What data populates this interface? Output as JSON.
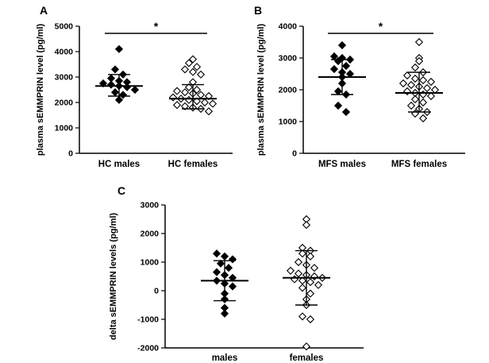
{
  "figure": {
    "background": "#ffffff",
    "marker_colors": {
      "filled": "#000000",
      "open_fill": "#ffffff",
      "stroke": "#000000"
    },
    "significance_marker": "*"
  },
  "chart_data": [
    {
      "panel": "A",
      "type": "scatter",
      "title": "",
      "ylabel": "plasma sEMMPRIN level (pg/ml)",
      "xlabel": "",
      "ylim": [
        0,
        5000
      ],
      "yticks": [
        0,
        1000,
        2000,
        3000,
        4000,
        5000
      ],
      "significance": "*",
      "legend": "none",
      "grid": false,
      "groups": [
        {
          "label": "HC males",
          "marker": "filled-diamond",
          "mean": 2650,
          "err_low": 2250,
          "err_high": 3100,
          "values": [
            4100,
            3300,
            3100,
            2950,
            2850,
            2800,
            2750,
            2700,
            2650,
            2600,
            2500,
            2400,
            2300,
            2100
          ]
        },
        {
          "label": "HC females",
          "marker": "open-diamond",
          "mean": 2150,
          "err_low": 1750,
          "err_high": 2700,
          "values": [
            3700,
            3550,
            3400,
            3300,
            3200,
            3100,
            2800,
            2600,
            2500,
            2450,
            2400,
            2350,
            2300,
            2250,
            2200,
            2150,
            2100,
            2050,
            2000,
            1950,
            1900,
            1850,
            1800,
            1750,
            1650
          ]
        }
      ]
    },
    {
      "panel": "B",
      "type": "scatter",
      "title": "",
      "ylabel": "plasma sEMMPRIN level (pg/ml)",
      "xlabel": "",
      "ylim": [
        0,
        4000
      ],
      "yticks": [
        0,
        1000,
        2000,
        3000,
        4000
      ],
      "significance": "*",
      "legend": "none",
      "grid": false,
      "groups": [
        {
          "label": "MFS males",
          "marker": "filled-diamond",
          "mean": 2400,
          "err_low": 1850,
          "err_high": 2950,
          "values": [
            3400,
            3050,
            3000,
            2950,
            2900,
            2750,
            2650,
            2550,
            2500,
            2400,
            2200,
            1950,
            1850,
            1500,
            1300
          ]
        },
        {
          "label": "MFS females",
          "marker": "open-diamond",
          "mean": 1900,
          "err_low": 1300,
          "err_high": 2550,
          "values": [
            3500,
            3000,
            2900,
            2700,
            2550,
            2450,
            2350,
            2300,
            2250,
            2200,
            2150,
            2100,
            2050,
            2000,
            1950,
            1900,
            1850,
            1800,
            1700,
            1600,
            1500,
            1400,
            1300,
            1250,
            1100
          ]
        }
      ]
    },
    {
      "panel": "C",
      "type": "scatter",
      "title": "",
      "ylabel": "delta sEMMPRIN levels (pg/ml)",
      "xlabel": "",
      "ylim": [
        -2000,
        3000
      ],
      "yticks": [
        -2000,
        -1000,
        0,
        1000,
        2000,
        3000
      ],
      "significance": null,
      "legend": "none",
      "grid": false,
      "groups": [
        {
          "label": "males",
          "marker": "filled-diamond",
          "mean": 350,
          "err_low": -350,
          "err_high": 1050,
          "values": [
            1300,
            1200,
            1100,
            950,
            800,
            650,
            550,
            450,
            350,
            250,
            150,
            -100,
            -300,
            -600,
            -800
          ]
        },
        {
          "label": "females",
          "marker": "open-diamond",
          "mean": 450,
          "err_low": -500,
          "err_high": 1400,
          "values": [
            2500,
            2300,
            1500,
            1400,
            1300,
            1200,
            1000,
            900,
            800,
            700,
            600,
            550,
            500,
            450,
            400,
            350,
            300,
            200,
            100,
            -100,
            -300,
            -500,
            -900,
            -1000,
            -1950
          ]
        }
      ]
    }
  ]
}
